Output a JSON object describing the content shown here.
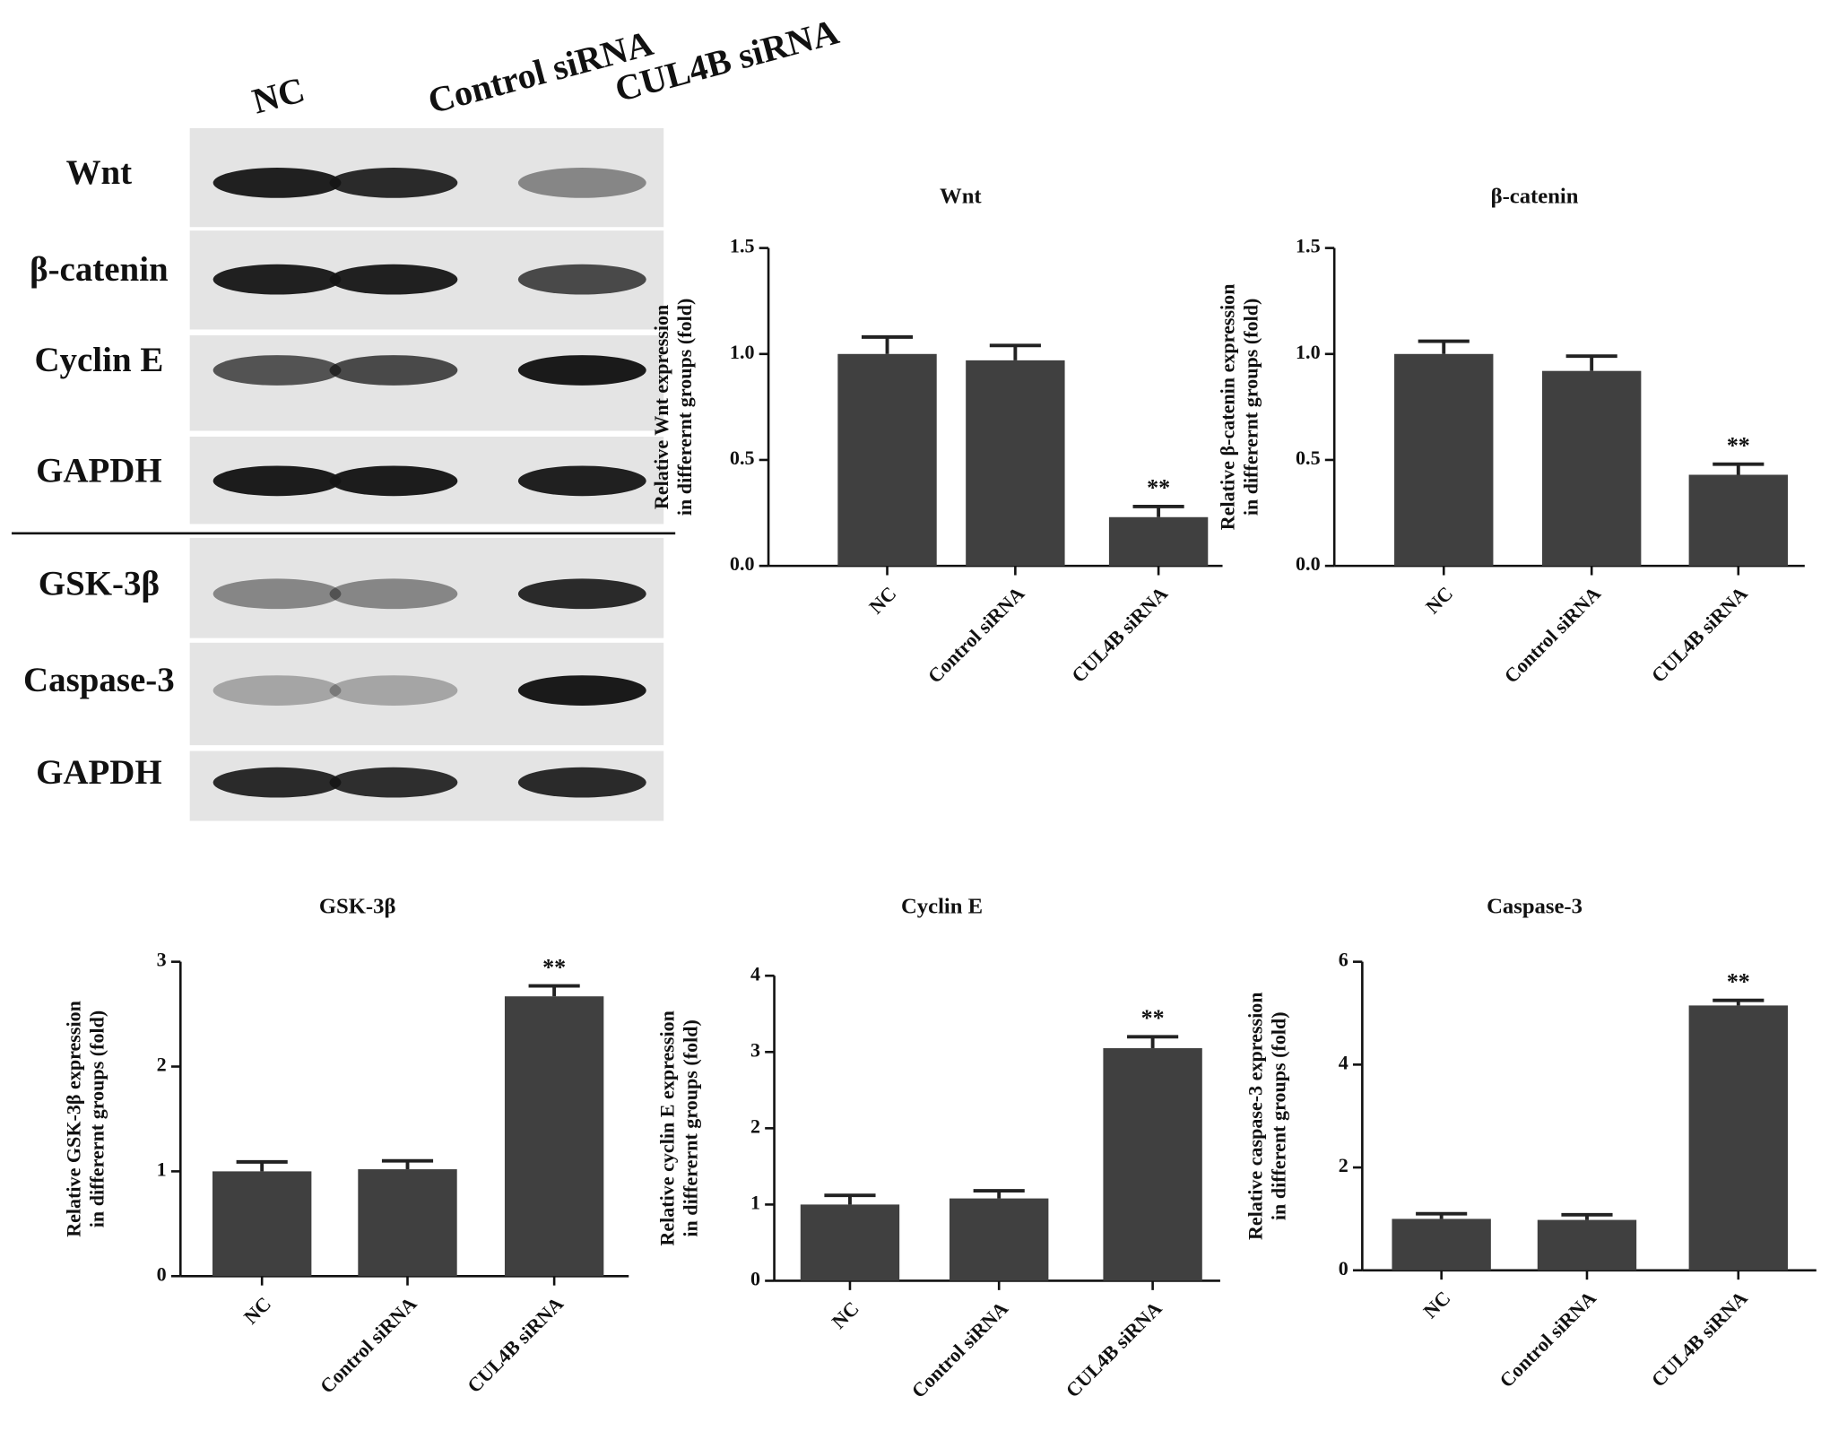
{
  "blot": {
    "lanes": [
      "NC",
      "Control siRNA",
      "CUL4B siRNA"
    ],
    "proteins": [
      "Wnt",
      "β-catenin",
      "Cyclin E",
      "GAPDH",
      "GSK-3β",
      "Caspase-3",
      "GAPDH"
    ]
  },
  "chart_data": [
    {
      "type": "bar",
      "title": "Wnt",
      "ylabel": [
        "Relative Wnt expression",
        "in differernt groups (fold)"
      ],
      "categories": [
        "NC",
        "Control siRNA",
        "CUL4B siRNA"
      ],
      "values": [
        1.0,
        0.97,
        0.23
      ],
      "errors": [
        0.08,
        0.07,
        0.05
      ],
      "significance": [
        null,
        null,
        "**"
      ],
      "color": "#404040",
      "ylim": [
        0,
        1.5
      ],
      "yticks": [
        {
          "value": 0,
          "label": "0.0"
        },
        0.5,
        {
          "value": 1,
          "label": "1.0"
        },
        1.5
      ]
    },
    {
      "type": "bar",
      "title": "β-catenin",
      "ylabel": [
        "Relative β-catenin expression",
        "in differernt groups (fold)"
      ],
      "categories": [
        "NC",
        "Control siRNA",
        "CUL4B siRNA"
      ],
      "values": [
        1.0,
        0.92,
        0.43
      ],
      "errors": [
        0.06,
        0.07,
        0.05
      ],
      "significance": [
        null,
        null,
        "**"
      ],
      "color": "#404040",
      "ylim": [
        0,
        1.5
      ],
      "yticks": [
        {
          "value": 0,
          "label": "0.0"
        },
        0.5,
        {
          "value": 1,
          "label": "1.0"
        },
        1.5
      ]
    },
    {
      "type": "bar",
      "title": "GSK-3β",
      "ylabel": [
        "Relative GSK-3β  expression",
        "in differernt groups (fold)"
      ],
      "categories": [
        "NC",
        "Control siRNA",
        "CUL4B siRNA"
      ],
      "values": [
        1.0,
        1.02,
        2.67
      ],
      "errors": [
        0.09,
        0.08,
        0.1
      ],
      "significance": [
        null,
        null,
        "**"
      ],
      "color": "#404040",
      "ylim": [
        0,
        3
      ],
      "yticks": [
        0,
        1,
        2,
        3
      ]
    },
    {
      "type": "bar",
      "title": "Cyclin E",
      "ylabel": [
        "Relative cyclin E expression",
        "in differernt groups (fold)"
      ],
      "categories": [
        "NC",
        "Control siRNA",
        "CUL4B siRNA"
      ],
      "values": [
        1.0,
        1.08,
        3.05
      ],
      "errors": [
        0.12,
        0.1,
        0.15
      ],
      "significance": [
        null,
        null,
        "**"
      ],
      "color": "#404040",
      "ylim": [
        0,
        4
      ],
      "yticks": [
        0,
        1,
        2,
        3,
        4
      ]
    },
    {
      "type": "bar",
      "title": "Caspase-3",
      "ylabel": [
        "Relative caspase-3 expression",
        "in different groups (fold)"
      ],
      "categories": [
        "NC",
        "Control siRNA",
        "CUL4B siRNA"
      ],
      "values": [
        1.0,
        0.98,
        5.15
      ],
      "errors": [
        0.1,
        0.1,
        0.1
      ],
      "significance": [
        null,
        null,
        "**"
      ],
      "color": "#404040",
      "ylim": [
        0,
        6
      ],
      "yticks": [
        0,
        2,
        4,
        6
      ]
    }
  ]
}
